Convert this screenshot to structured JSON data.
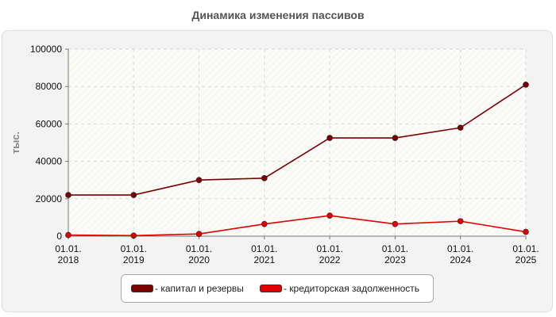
{
  "chart_data": {
    "type": "line",
    "title": "Динамика изменения пассивов",
    "ylabel": "тыс.",
    "xlabel": "",
    "categories": [
      "01.01.\n2018",
      "01.01.\n2019",
      "01.01.\n2020",
      "01.01.\n2021",
      "01.01.\n2022",
      "01.01.\n2023",
      "01.01.\n2024",
      "01.01.\n2025"
    ],
    "ylim": [
      0,
      100000
    ],
    "yticks": [
      "0",
      "20000",
      "40000",
      "60000",
      "80000",
      "100000"
    ],
    "grid": true,
    "legend_position": "bottom",
    "series": [
      {
        "name": "- капитал и резервы",
        "color": "#7a0000",
        "values": [
          22000,
          22000,
          30000,
          31000,
          52500,
          52500,
          58000,
          81000
        ]
      },
      {
        "name": "- кредиторская задолженность",
        "color": "#e00000",
        "values": [
          600,
          300,
          1200,
          6500,
          11000,
          6500,
          8000,
          2300
        ]
      }
    ]
  }
}
